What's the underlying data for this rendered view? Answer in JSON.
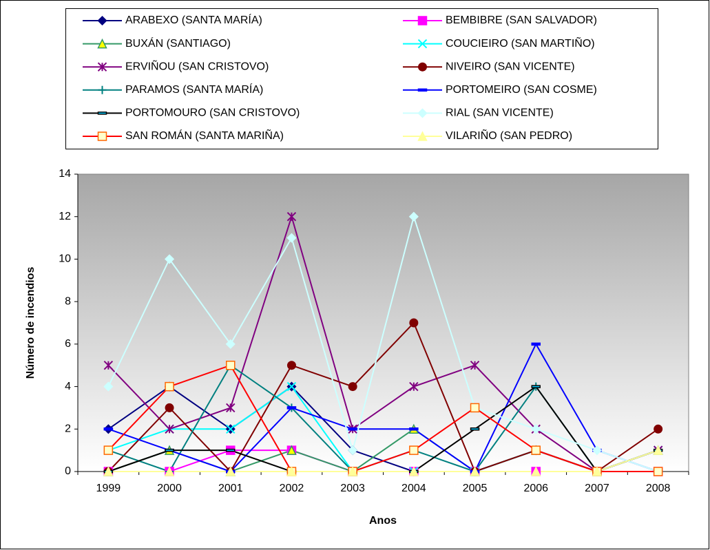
{
  "chart_data": {
    "type": "line",
    "x_label": "Anos",
    "y_label": "Número de incendios",
    "categories": [
      "1999",
      "2000",
      "2001",
      "2002",
      "2003",
      "2004",
      "2005",
      "2006",
      "2007",
      "2008"
    ],
    "ylim": [
      0,
      14
    ],
    "yticks": [
      0,
      2,
      4,
      6,
      8,
      10,
      12,
      14
    ],
    "series": [
      {
        "name": "ARABEXO (SANTA MARÍA)",
        "color": "#000080",
        "marker": "diamond",
        "values": [
          2,
          4,
          2,
          4,
          1,
          0,
          0,
          1,
          0,
          0
        ]
      },
      {
        "name": "BEMBIBRE (SAN SALVADOR)",
        "color": "#FF00FF",
        "marker": "square",
        "values": [
          0,
          0,
          1,
          1,
          0,
          0,
          0,
          0,
          0,
          0
        ]
      },
      {
        "name": "BUXÁN (SANTIAGO)",
        "color": "#339966",
        "marker": "triangle",
        "marker_fill": "#FFFF00",
        "values": [
          0,
          1,
          0,
          1,
          0,
          2,
          0,
          1,
          0,
          1
        ]
      },
      {
        "name": "COUCIEIRO (SAN MARTIÑO)",
        "color": "#00FFFF",
        "marker": "x",
        "values": [
          1,
          2,
          2,
          4,
          0,
          0,
          0,
          1,
          0,
          1
        ]
      },
      {
        "name": "ERVIÑOU (SAN CRISTOVO)",
        "color": "#800080",
        "marker": "star",
        "values": [
          5,
          2,
          3,
          12,
          2,
          4,
          5,
          2,
          0,
          1
        ]
      },
      {
        "name": "NIVEIRO (SAN VICENTE)",
        "color": "#800000",
        "marker": "circle",
        "values": [
          0,
          3,
          0,
          5,
          4,
          7,
          0,
          1,
          0,
          2
        ]
      },
      {
        "name": "PARAMOS (SANTA MARÍA)",
        "color": "#008080",
        "marker": "plus",
        "values": [
          1,
          0,
          5,
          3,
          0,
          1,
          0,
          4,
          0,
          1
        ]
      },
      {
        "name": "PORTOMEIRO (SAN COSME)",
        "color": "#0000FF",
        "marker": "dash",
        "values": [
          2,
          1,
          0,
          3,
          2,
          2,
          0,
          6,
          1,
          0
        ]
      },
      {
        "name": "PORTOMOURO (SAN CRISTOVO)",
        "color": "#000000",
        "marker": "dash",
        "marker_fill": "#00CCFF",
        "values": [
          0,
          1,
          1,
          0,
          0,
          0,
          2,
          4,
          0,
          1
        ]
      },
      {
        "name": "RIAL (SAN VICENTE)",
        "color": "#CCFFFF",
        "marker": "diamond",
        "values": [
          4,
          10,
          6,
          11,
          1,
          12,
          3,
          2,
          1,
          0
        ]
      },
      {
        "name": "SAN ROMÁN (SANTA MARIÑA)",
        "color": "#FF0000",
        "marker": "square",
        "marker_fill": "#FFFFCC",
        "marker_stroke": "#FF6600",
        "values": [
          1,
          4,
          5,
          0,
          0,
          1,
          3,
          1,
          0,
          0
        ]
      },
      {
        "name": "VILARIÑO (SAN PEDRO)",
        "color": "#FFFF99",
        "marker": "triangle",
        "values": [
          0,
          0,
          0,
          0,
          0,
          0,
          0,
          0,
          0,
          1
        ]
      }
    ]
  }
}
